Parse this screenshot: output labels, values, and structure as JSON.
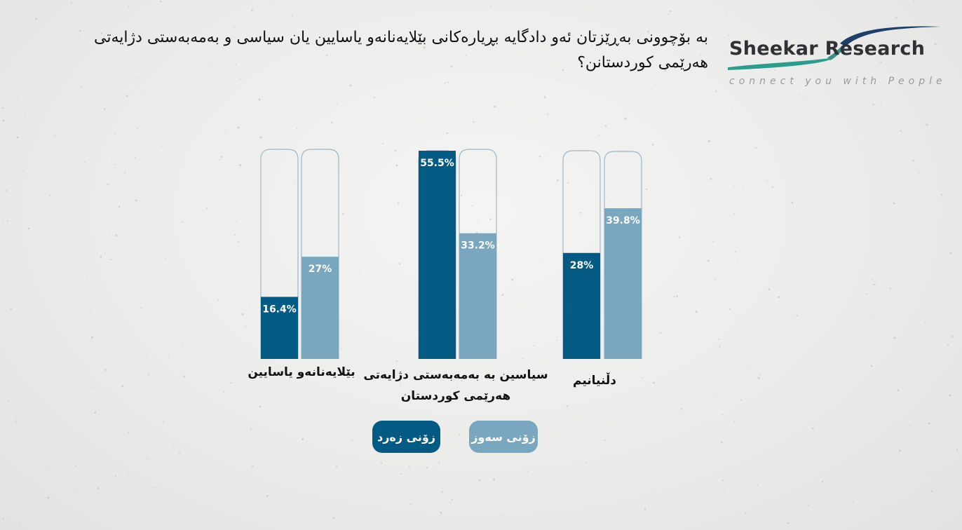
{
  "title": "به بۆچوونی بەڕێزتان ئەو دادگایە بڕیارەکانی بێلایەنانەو یاسایین یان سیاسی و بەمەبەستی دژایەتی هەرێمی کوردستانن؟",
  "logo": {
    "name": "Sheekar Research",
    "tagline": "connect you with People"
  },
  "colors": {
    "dark": "#035b84",
    "light": "#78a7bf",
    "outline": "#9cb8cb"
  },
  "chart_data": {
    "type": "bar",
    "categories": [
      "بێلایەنانەو یاسایین",
      "سیاسین بە بەمەبەستی دژایەتی هەرێمی کوردستان",
      "دڵنیانیم"
    ],
    "series": [
      {
        "name": "زۆنی زەرد",
        "values": [
          16.4,
          55.5,
          28
        ]
      },
      {
        "name": "زۆنی سەوز",
        "values": [
          27,
          33.2,
          39.8
        ]
      }
    ],
    "value_labels": [
      [
        "16.4%",
        "55.5%",
        "28%"
      ],
      [
        "27%",
        "33.2%",
        "39.8%"
      ]
    ],
    "ylim": [
      0,
      100
    ],
    "legend": "bottom",
    "grid": false
  }
}
